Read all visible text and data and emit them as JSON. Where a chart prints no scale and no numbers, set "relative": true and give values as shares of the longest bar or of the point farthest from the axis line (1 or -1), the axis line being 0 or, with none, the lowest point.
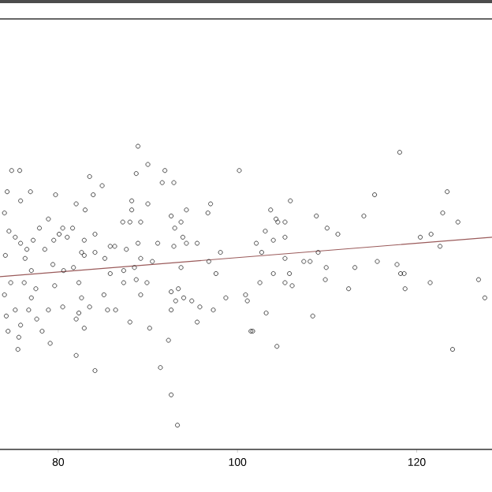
{
  "chart_data": {
    "type": "scatter",
    "relative": true,
    "xlim": [
      73.5,
      128.4
    ],
    "xticks": [
      80,
      100,
      120
    ],
    "series": [
      {
        "marker": "circle",
        "color": "#222222",
        "x": [
          88.9,
          74.8,
          75.7,
          90.0,
          91.9,
          88.7,
          100.2,
          83.5,
          84.9,
          91.6,
          92.9,
          74.3,
          76.9,
          79.7,
          83.9,
          75.8,
          88.2,
          90.0,
          82.0,
          83.0,
          88.2,
          94.3,
          97.0,
          96.7,
          74.0,
          78.9,
          87.2,
          88.0,
          89.2,
          92.6,
          93.7,
          80.5,
          81.6,
          77.9,
          84.1,
          80.1,
          81.0,
          93.0,
          74.5,
          75.2,
          75.8,
          77.2,
          79.5,
          82.9,
          86.3,
          88.9,
          91.1,
          93.9,
          94.3,
          95.5,
          92.9,
          76.5,
          78.5,
          82.6,
          84.1,
          85.8,
          87.6,
          98.1,
          74.1,
          76.3,
          82.9,
          85.2,
          89.2,
          90.5,
          81.7,
          79.4,
          77.0,
          80.6,
          87.3,
          88.5,
          96.8,
          93.7,
          97.6,
          74.7,
          76.2,
          77.5,
          79.6,
          82.3,
          85.8,
          88.7,
          89.9,
          74.0,
          77.0,
          82.6,
          85.1,
          87.3,
          89.2,
          92.6,
          93.4,
          93.1,
          94.0,
          94.9,
          98.7,
          100.9,
          101.1,
          75.2,
          76.7,
          78.9,
          80.5,
          83.5,
          85.5,
          86.4,
          92.6,
          95.8,
          97.3,
          82.3,
          74.2,
          77.6,
          82.0,
          82.9,
          88.0,
          90.2,
          95.5,
          74.4,
          75.8,
          78.2,
          75.6,
          79.1,
          92.3,
          75.5,
          82.0,
          84.1,
          91.4,
          92.6,
          93.3,
          101.5,
          118.1,
          123.4,
          115.3,
          105.9,
          103.7,
          122.9,
          124.6,
          108.8,
          114.1,
          104.3,
          105.3,
          104.5,
          110.0,
          111.2,
          103.1,
          120.4,
          121.6,
          102.1,
          104.0,
          105.3,
          122.6,
          102.7,
          109.0,
          105.3,
          107.4,
          108.1,
          115.6,
          117.8,
          113.1,
          109.9,
          104.0,
          105.8,
          118.2,
          118.6,
          126.9,
          102.5,
          105.3,
          106.1,
          109.8,
          118.7,
          121.5,
          112.4,
          127.6,
          103.2,
          108.4,
          101.7,
          104.4,
          124.0
        ],
        "values": [
          1.0,
          0.92,
          0.92,
          0.94,
          0.92,
          0.91,
          0.92,
          0.9,
          0.87,
          0.88,
          0.88,
          0.85,
          0.85,
          0.84,
          0.84,
          0.82,
          0.82,
          0.81,
          0.81,
          0.79,
          0.79,
          0.79,
          0.81,
          0.78,
          0.78,
          0.76,
          0.75,
          0.75,
          0.75,
          0.77,
          0.75,
          0.73,
          0.73,
          0.73,
          0.71,
          0.71,
          0.7,
          0.73,
          0.72,
          0.7,
          0.68,
          0.69,
          0.69,
          0.69,
          0.67,
          0.68,
          0.68,
          0.7,
          0.68,
          0.68,
          0.67,
          0.66,
          0.66,
          0.65,
          0.65,
          0.67,
          0.66,
          0.65,
          0.64,
          0.63,
          0.64,
          0.63,
          0.63,
          0.62,
          0.6,
          0.61,
          0.59,
          0.59,
          0.59,
          0.6,
          0.62,
          0.6,
          0.58,
          0.55,
          0.55,
          0.53,
          0.54,
          0.55,
          0.58,
          0.56,
          0.55,
          0.51,
          0.5,
          0.5,
          0.51,
          0.55,
          0.51,
          0.52,
          0.53,
          0.49,
          0.5,
          0.49,
          0.5,
          0.51,
          0.49,
          0.46,
          0.46,
          0.46,
          0.47,
          0.47,
          0.46,
          0.46,
          0.46,
          0.47,
          0.46,
          0.45,
          0.44,
          0.43,
          0.43,
          0.4,
          0.42,
          0.4,
          0.42,
          0.39,
          0.41,
          0.39,
          0.37,
          0.35,
          0.36,
          0.33,
          0.31,
          0.26,
          0.27,
          0.18,
          0.08,
          0.39,
          0.98,
          0.85,
          0.84,
          0.82,
          0.79,
          0.78,
          0.75,
          0.77,
          0.77,
          0.76,
          0.75,
          0.75,
          0.73,
          0.71,
          0.72,
          0.7,
          0.71,
          0.68,
          0.69,
          0.7,
          0.67,
          0.65,
          0.65,
          0.63,
          0.62,
          0.62,
          0.62,
          0.61,
          0.6,
          0.6,
          0.58,
          0.58,
          0.58,
          0.58,
          0.56,
          0.55,
          0.55,
          0.54,
          0.56,
          0.53,
          0.55,
          0.53,
          0.5,
          0.45,
          0.44,
          0.39,
          0.34,
          0.33
        ]
      },
      {
        "type": "line",
        "marker": "none",
        "color": "#9a5a5a",
        "x": [
          73.5,
          128.4
        ],
        "values": [
          0.57,
          0.7
        ]
      }
    ]
  }
}
